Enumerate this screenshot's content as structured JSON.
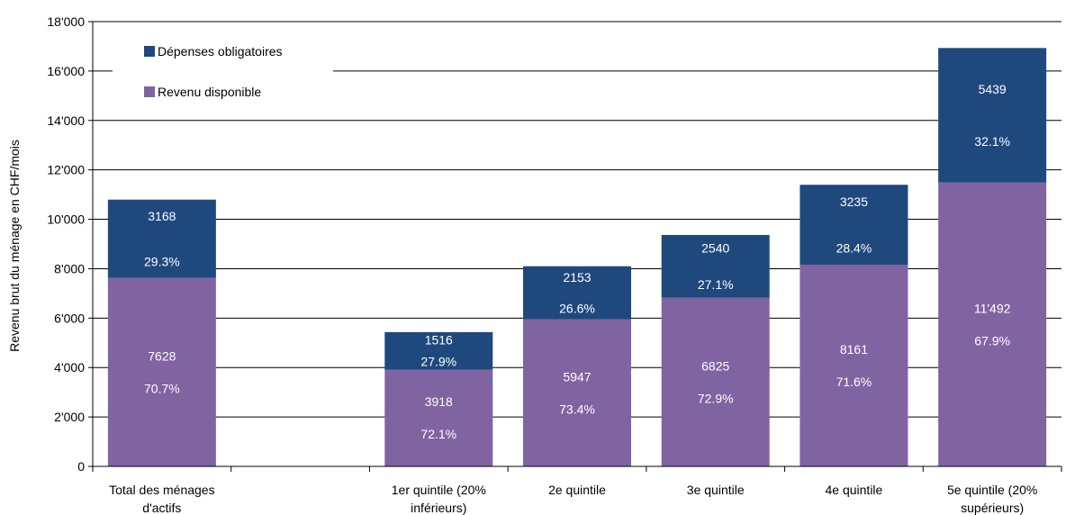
{
  "chart_data": {
    "type": "bar",
    "stacked": true,
    "ylabel": "Revenu brut du ménage en CHF/mois",
    "ylim": [
      0,
      18000
    ],
    "yticks": [
      {
        "value": 0,
        "label": "0"
      },
      {
        "value": 2000,
        "label": "2'000"
      },
      {
        "value": 4000,
        "label": "4'000"
      },
      {
        "value": 6000,
        "label": "6'000"
      },
      {
        "value": 8000,
        "label": "8'000"
      },
      {
        "value": 10000,
        "label": "10'000"
      },
      {
        "value": 12000,
        "label": "12'000"
      },
      {
        "value": 14000,
        "label": "14'000"
      },
      {
        "value": 16000,
        "label": "16'000"
      },
      {
        "value": 18000,
        "label": "18'000"
      }
    ],
    "grid": true,
    "legend_position": "top-left",
    "categories": [
      {
        "lines": [
          "Total des ménages",
          "d'actifs"
        ]
      },
      {
        "lines": [
          "",
          ""
        ]
      },
      {
        "lines": [
          "1er quintile (20%",
          "inférieurs)"
        ]
      },
      {
        "lines": [
          "2e quintile",
          ""
        ]
      },
      {
        "lines": [
          "3e quintile",
          ""
        ]
      },
      {
        "lines": [
          "4e quintile",
          ""
        ]
      },
      {
        "lines": [
          "5e quintile (20%",
          "supérieurs)"
        ]
      }
    ],
    "series": [
      {
        "name": "Revenu disponible",
        "color": "#8064A2",
        "values": [
          7628,
          null,
          3918,
          5947,
          6825,
          8161,
          11492
        ],
        "value_labels": [
          "7628",
          "",
          "3918",
          "5947",
          "6825",
          "8161",
          "11'492"
        ],
        "pct_labels": [
          "70.7%",
          "",
          "72.1%",
          "73.4%",
          "72.9%",
          "71.6%",
          "67.9%"
        ]
      },
      {
        "name": "Dépenses obligatoires",
        "color": "#1F497D",
        "values": [
          3168,
          null,
          1516,
          2153,
          2540,
          3235,
          5439
        ],
        "value_labels": [
          "3168",
          "",
          "1516",
          "2153",
          "2540",
          "3235",
          "5439"
        ],
        "pct_labels": [
          "29.3%",
          "",
          "27.9%",
          "26.6%",
          "27.1%",
          "28.4%",
          "32.1%"
        ]
      }
    ],
    "legend": [
      {
        "name": "Dépenses obligatoires",
        "color": "#1F497D"
      },
      {
        "name": "Revenu disponible",
        "color": "#8064A2"
      }
    ]
  }
}
